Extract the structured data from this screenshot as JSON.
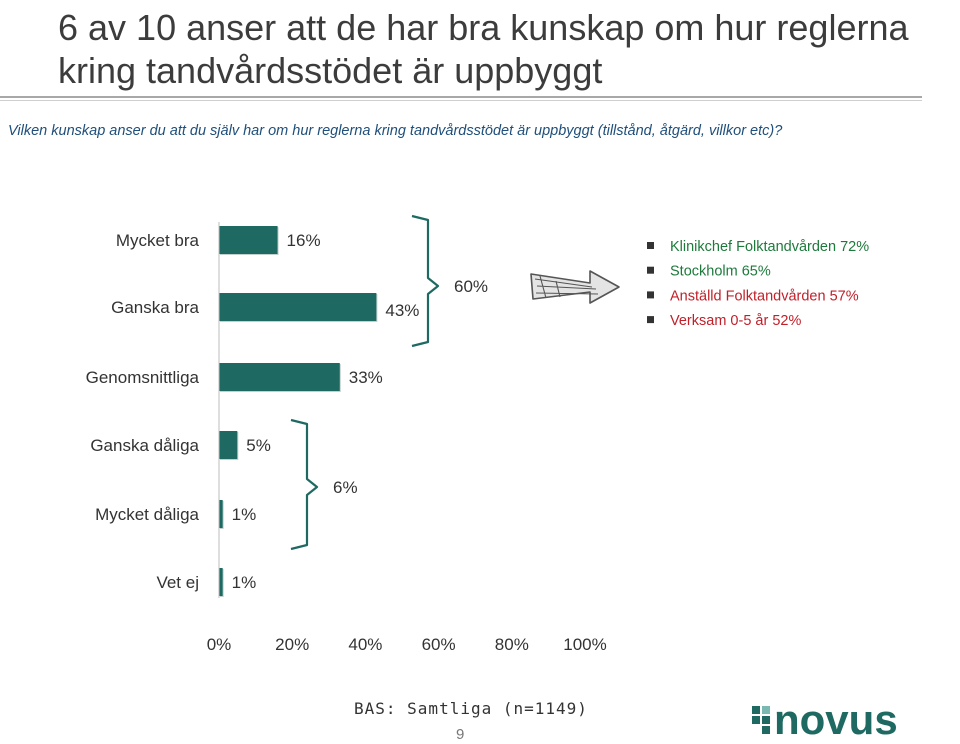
{
  "title": "6 av 10 anser att de har bra kunskap om hur reglerna kring tandvårdsstödet är uppbyggt",
  "question": "Vilken kunskap anser du att du själv har om hur reglerna kring tandvårdsstödet är uppbyggt (tillstånd, åtgärd, villkor etc)?",
  "chart_data": {
    "type": "bar",
    "orientation": "horizontal",
    "categories": [
      "Mycket bra",
      "Ganska bra",
      "Genomsnittliga",
      "Ganska dåliga",
      "Mycket dåliga",
      "Vet ej"
    ],
    "values": [
      16,
      43,
      33,
      5,
      1,
      1
    ],
    "value_labels": [
      "16%",
      "43%",
      "33%",
      "5%",
      "1%",
      "1%"
    ],
    "xlim": [
      0,
      100
    ],
    "x_ticks": [
      "0%",
      "20%",
      "40%",
      "60%",
      "80%",
      "100%"
    ],
    "bar_color": "#1e6a63",
    "grid": false,
    "groups": [
      {
        "label": "60%",
        "members": [
          "Mycket bra",
          "Ganska bra"
        ]
      },
      {
        "label": "6%",
        "members": [
          "Ganska dåliga",
          "Mycket dåliga"
        ]
      }
    ],
    "annotations": [
      {
        "text": "Klinikchef Folktandvården 72%",
        "color": "#1e7a3c"
      },
      {
        "text": "Stockholm 65%",
        "color": "#1e7a3c"
      },
      {
        "text": "Anställd Folktandvården 57%",
        "color": "#c0202a"
      },
      {
        "text": "Verksam  0-5 år 52%",
        "color": "#c0202a"
      }
    ]
  },
  "footer": {
    "base": "BAS: Samtliga (n=1149)",
    "page_number": "9",
    "logo_text": "novus"
  }
}
